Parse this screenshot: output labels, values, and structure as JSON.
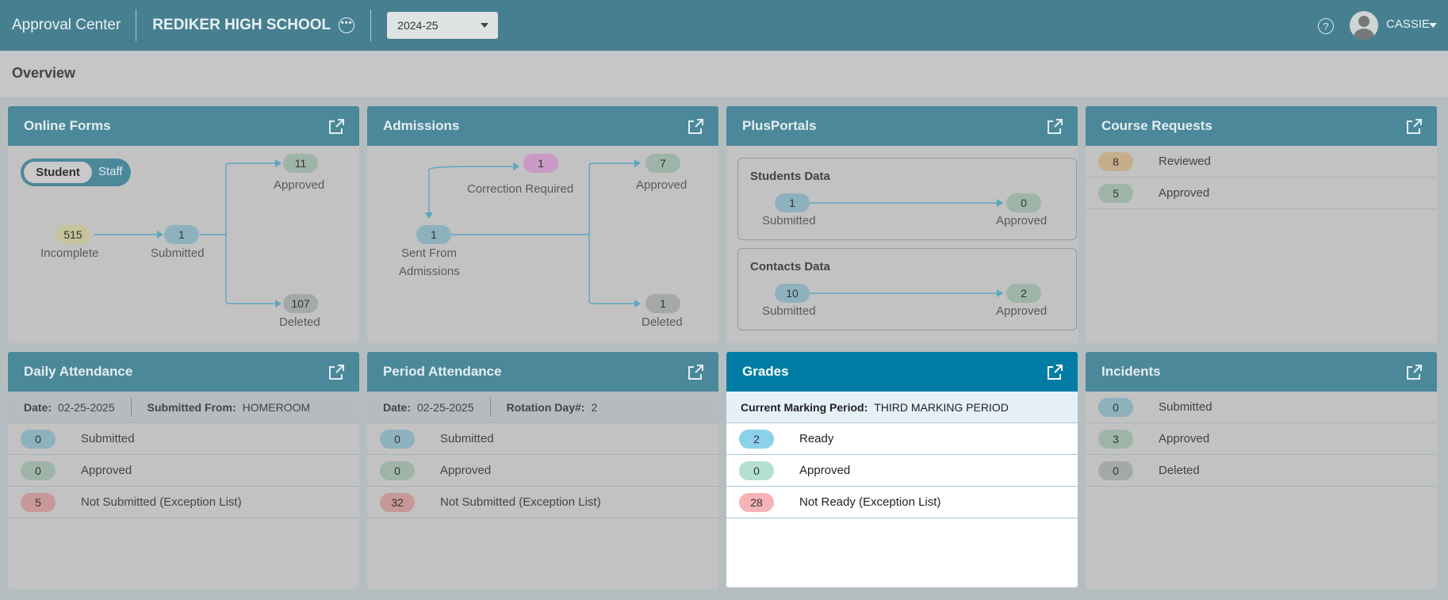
{
  "header": {
    "app_title": "Approval Center",
    "school_name": "REDIKER HIGH SCHOOL",
    "school_year": "2024-25",
    "user_name": "CASSIE"
  },
  "overview": {
    "title": "Overview"
  },
  "online_forms": {
    "title": "Online Forms",
    "toggle": {
      "active": "Student",
      "inactive": "Staff"
    },
    "incomplete": {
      "count": "515",
      "label": "Incomplete"
    },
    "submitted": {
      "count": "1",
      "label": "Submitted"
    },
    "approved": {
      "count": "11",
      "label": "Approved"
    },
    "deleted": {
      "count": "107",
      "label": "Deleted"
    }
  },
  "admissions": {
    "title": "Admissions",
    "correction": {
      "count": "1",
      "label": "Correction Required"
    },
    "sent": {
      "count": "1",
      "label_line1": "Sent From",
      "label_line2": "Admissions"
    },
    "approved": {
      "count": "7",
      "label": "Approved"
    },
    "deleted": {
      "count": "1",
      "label": "Deleted"
    }
  },
  "plusportals": {
    "title": "PlusPortals",
    "students": {
      "title": "Students Data",
      "submitted": "1",
      "submitted_label": "Submitted",
      "approved": "0",
      "approved_label": "Approved"
    },
    "contacts": {
      "title": "Contacts Data",
      "submitted": "10",
      "submitted_label": "Submitted",
      "approved": "2",
      "approved_label": "Approved"
    }
  },
  "course_requests": {
    "title": "Course Requests",
    "rows": [
      {
        "count": "8",
        "label": "Reviewed"
      },
      {
        "count": "5",
        "label": "Approved"
      }
    ]
  },
  "daily_attendance": {
    "title": "Daily Attendance",
    "date_label": "Date:",
    "date_value": "02-25-2025",
    "from_label": "Submitted From:",
    "from_value": "HOMEROOM",
    "rows": [
      {
        "count": "0",
        "label": "Submitted"
      },
      {
        "count": "0",
        "label": "Approved"
      },
      {
        "count": "5",
        "label": "Not Submitted (Exception List)"
      }
    ]
  },
  "period_attendance": {
    "title": "Period Attendance",
    "date_label": "Date:",
    "date_value": "02-25-2025",
    "rotation_label": "Rotation Day#:",
    "rotation_value": "2",
    "rows": [
      {
        "count": "0",
        "label": "Submitted"
      },
      {
        "count": "0",
        "label": "Approved"
      },
      {
        "count": "32",
        "label": "Not Submitted (Exception List)"
      }
    ]
  },
  "grades": {
    "title": "Grades",
    "mp_label": "Current Marking Period:",
    "mp_value": "THIRD MARKING PERIOD",
    "rows": [
      {
        "count": "2",
        "label": "Ready"
      },
      {
        "count": "0",
        "label": "Approved"
      },
      {
        "count": "28",
        "label": "Not Ready (Exception List)"
      }
    ]
  },
  "incidents": {
    "title": "Incidents",
    "rows": [
      {
        "count": "0",
        "label": "Submitted"
      },
      {
        "count": "3",
        "label": "Approved"
      },
      {
        "count": "0",
        "label": "Deleted"
      }
    ]
  }
}
